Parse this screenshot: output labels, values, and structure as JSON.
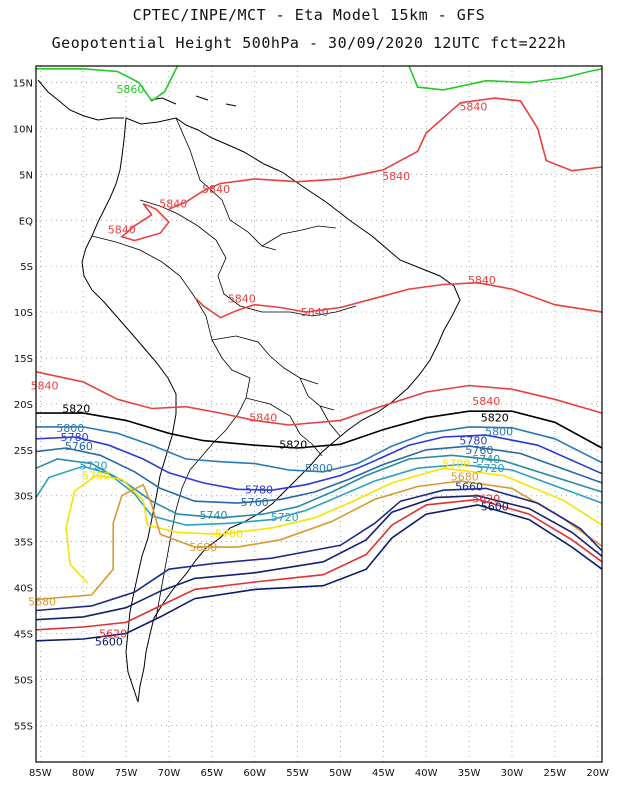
{
  "header": {
    "line1": "CPTEC/INPE/MCT -  Eta Model 15km - GFS",
    "line2": "Geopotential Height 500hPa - 30/09/2020 12UTC fct=222h"
  },
  "axes": {
    "lon_labels": [
      "85W",
      "80W",
      "75W",
      "70W",
      "65W",
      "60W",
      "55W",
      "50W",
      "45W",
      "40W",
      "35W",
      "30W",
      "25W",
      "20W"
    ],
    "lat_labels": [
      "15N",
      "10N",
      "5N",
      "EQ",
      "5S",
      "10S",
      "15S",
      "20S",
      "25S",
      "30S",
      "35S",
      "40S",
      "45S",
      "50S",
      "55S"
    ],
    "grid": "dotted"
  },
  "contour_colors": {
    "5600": "#0a1a6e",
    "5620": "#e03030",
    "5640": "#15206e",
    "5660": "#1f2d8a",
    "5680": "#d89a30",
    "5700": "#f5e400",
    "5720": "#2aa0c0",
    "5740": "#2a8aa8",
    "5760": "#2868a8",
    "5780": "#2a3ad8",
    "5800": "#2a7ab8",
    "5820": "#000000",
    "5840": "#e84040",
    "5860": "#22cc22"
  },
  "contour_labels": [
    {
      "text": "5860",
      "c": "5860",
      "lon": -74.5,
      "lat": 14.3
    },
    {
      "text": "5840",
      "c": "5840",
      "lon": -34.5,
      "lat": 12.4
    },
    {
      "text": "5840",
      "c": "5840",
      "lon": -43.5,
      "lat": 4.8
    },
    {
      "text": "5840",
      "c": "5840",
      "lon": -64.5,
      "lat": 3.4
    },
    {
      "text": "5840",
      "c": "5840",
      "lon": -69.5,
      "lat": 1.8
    },
    {
      "text": "5840",
      "c": "5840",
      "lon": -75.5,
      "lat": -1.0
    },
    {
      "text": "5840",
      "c": "5840",
      "lon": -33.5,
      "lat": -6.5
    },
    {
      "text": "5840",
      "c": "5840",
      "lon": -61.5,
      "lat": -8.5
    },
    {
      "text": "5840",
      "c": "5840",
      "lon": -53.0,
      "lat": -10.0
    },
    {
      "text": "5840",
      "c": "5840",
      "lon": -84.5,
      "lat": -18.0
    },
    {
      "text": "5840",
      "c": "5840",
      "lon": -33.0,
      "lat": -19.7
    },
    {
      "text": "5840",
      "c": "5840",
      "lon": -59.0,
      "lat": -21.5
    },
    {
      "text": "5820",
      "c": "5820",
      "lon": -80.8,
      "lat": -20.5
    },
    {
      "text": "5820",
      "c": "5820",
      "lon": -32.0,
      "lat": -21.5
    },
    {
      "text": "5820",
      "c": "5820",
      "lon": -55.5,
      "lat": -24.4
    },
    {
      "text": "5800",
      "c": "5800",
      "lon": -81.5,
      "lat": -22.6
    },
    {
      "text": "5800",
      "c": "5800",
      "lon": -31.5,
      "lat": -23.0
    },
    {
      "text": "5800",
      "c": "5800",
      "lon": -52.5,
      "lat": -27.0
    },
    {
      "text": "5780",
      "c": "5780",
      "lon": -81.0,
      "lat": -23.6
    },
    {
      "text": "5780",
      "c": "5780",
      "lon": -34.5,
      "lat": -24.0
    },
    {
      "text": "5780",
      "c": "5780",
      "lon": -59.5,
      "lat": -29.3
    },
    {
      "text": "5760",
      "c": "5760",
      "lon": -80.5,
      "lat": -24.6
    },
    {
      "text": "5760",
      "c": "5760",
      "lon": -33.8,
      "lat": -25.0
    },
    {
      "text": "5760",
      "c": "5760",
      "lon": -60.0,
      "lat": -30.7
    },
    {
      "text": "5740",
      "c": "5740",
      "lon": -33.0,
      "lat": -26.0
    },
    {
      "text": "5740",
      "c": "5740",
      "lon": -64.8,
      "lat": -32.1
    },
    {
      "text": "5720",
      "c": "5720",
      "lon": -78.8,
      "lat": -26.7
    },
    {
      "text": "5720",
      "c": "5720",
      "lon": -32.5,
      "lat": -27.0
    },
    {
      "text": "5720",
      "c": "5720",
      "lon": -56.5,
      "lat": -32.3
    },
    {
      "text": "5700",
      "c": "5700",
      "lon": -78.5,
      "lat": -27.8
    },
    {
      "text": "5700",
      "c": "5700",
      "lon": -36.5,
      "lat": -26.5
    },
    {
      "text": "5700",
      "c": "5700",
      "lon": -63.0,
      "lat": -34.1
    },
    {
      "text": "5680",
      "c": "5680",
      "lon": -35.5,
      "lat": -27.9
    },
    {
      "text": "5680",
      "c": "5680",
      "lon": -66.0,
      "lat": -35.6
    },
    {
      "text": "5680",
      "c": "5680",
      "lon": -84.8,
      "lat": -41.5
    },
    {
      "text": "5660",
      "c": "5660",
      "lon": -35.0,
      "lat": -29.0
    },
    {
      "text": "5620",
      "c": "5620",
      "lon": -33.0,
      "lat": -30.3
    },
    {
      "text": "5620",
      "c": "5620",
      "lon": -76.5,
      "lat": -45.0
    },
    {
      "text": "5600",
      "c": "5600",
      "lon": -32.0,
      "lat": -31.2
    },
    {
      "text": "5600",
      "c": "5600",
      "lon": -77.0,
      "lat": -45.9
    }
  ]
}
